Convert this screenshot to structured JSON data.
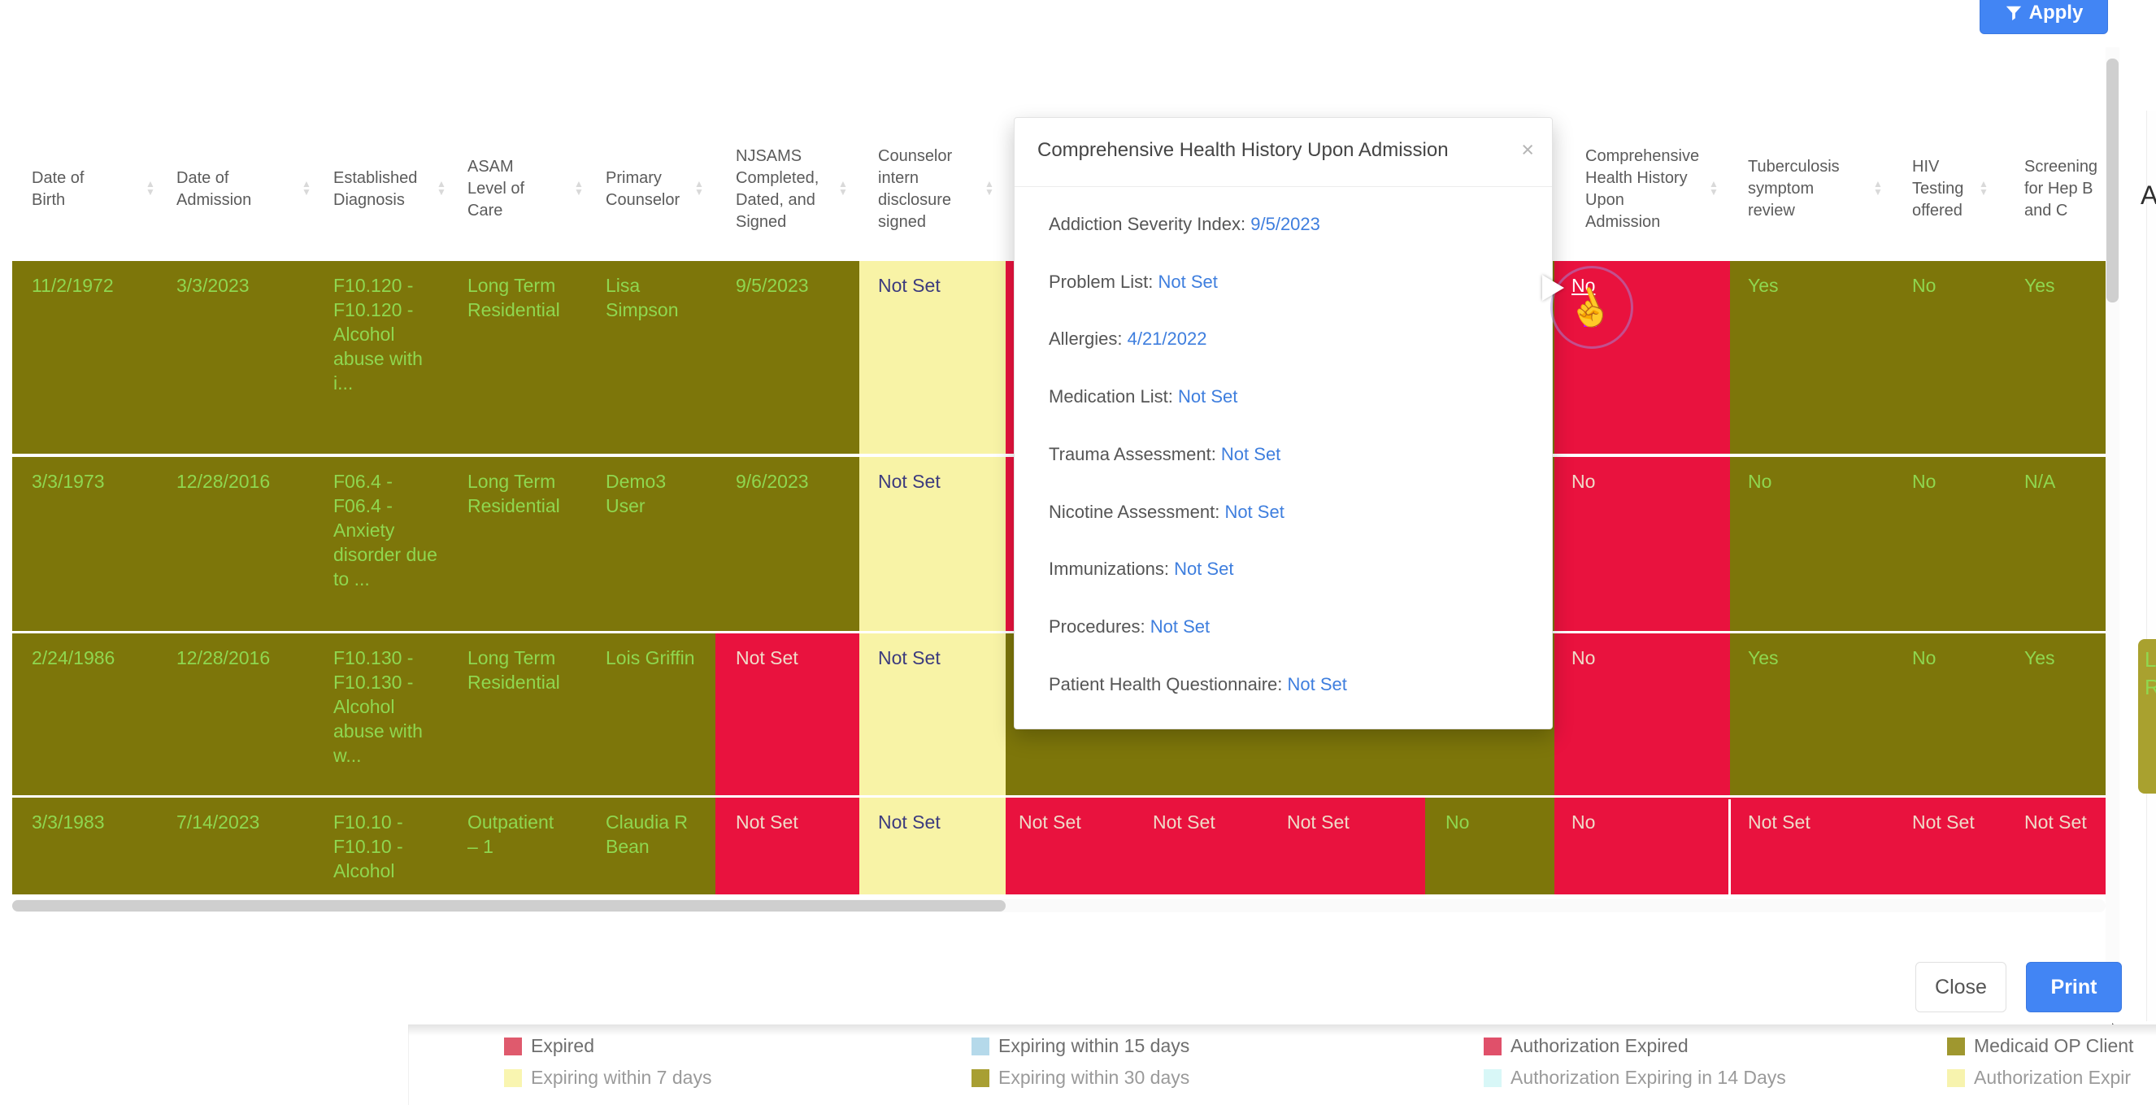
{
  "toolbar": {
    "apply_label": "Apply"
  },
  "colors": {
    "olive": "#7d760a",
    "red": "#e9123e",
    "yellow": "#f8f3a6",
    "olive_text": "#8fd74f",
    "red_text": "#efdbc8",
    "yellow_text": "#3c3b7e",
    "accent_blue": "#4285f4",
    "link_blue": "#3e7ede"
  },
  "table": {
    "columns": [
      {
        "label": "Date of\nBirth",
        "sort": true
      },
      {
        "label": "Date of\nAdmission",
        "sort": true
      },
      {
        "label": "Established\nDiagnosis",
        "sort": true
      },
      {
        "label": "ASAM\nLevel of\nCare",
        "sort": true
      },
      {
        "label": "Primary\nCounselor",
        "sort": true
      },
      {
        "label": "NJSAMS\nCompleted,\nDated, and\nSigned",
        "sort": true
      },
      {
        "label": "Counselor\nintern\ndisclosure\nsigned",
        "sort": true
      },
      {
        "label": "",
        "sort": false
      },
      {
        "label": "",
        "sort": false
      },
      {
        "label": "",
        "sort": false
      },
      {
        "label": "",
        "sort": false
      },
      {
        "label": "Comprehensive\nHealth History\nUpon\nAdmission",
        "sort": true
      },
      {
        "label": "Tuberculosis\nsymptom\nreview",
        "sort": true
      },
      {
        "label": "HIV\nTesting\noffered",
        "sort": true
      },
      {
        "label": "Screening\nfor Hep B\nand C",
        "sort": false
      }
    ],
    "rows": [
      {
        "cells": [
          {
            "t": "11/2/1972",
            "bg": "olive"
          },
          {
            "t": "3/3/2023",
            "bg": "olive"
          },
          {
            "t": "F10.120 -\nF10.120 -\nAlcohol\nabuse with\ni...",
            "bg": "olive"
          },
          {
            "t": "Long Term\nResidential",
            "bg": "olive"
          },
          {
            "t": "Lisa\nSimpson",
            "bg": "olive"
          },
          {
            "t": "9/5/2023",
            "bg": "olive"
          },
          {
            "t": "Not Set",
            "bg": "yellow"
          },
          {
            "t": "",
            "bg": "red"
          },
          {
            "t": "",
            "bg": "olive"
          },
          {
            "t": "",
            "bg": "olive"
          },
          {
            "t": "",
            "bg": "olive"
          },
          {
            "t": "No",
            "bg": "red",
            "hover": true
          },
          {
            "t": "Yes",
            "bg": "olive"
          },
          {
            "t": "No",
            "bg": "olive"
          },
          {
            "t": "Yes",
            "bg": "olive"
          }
        ]
      },
      {
        "cells": [
          {
            "t": "3/3/1973",
            "bg": "olive"
          },
          {
            "t": "12/28/2016",
            "bg": "olive"
          },
          {
            "t": "F06.4 -\nF06.4 -\nAnxiety\ndisorder due\nto ...",
            "bg": "olive"
          },
          {
            "t": "Long Term\nResidential",
            "bg": "olive"
          },
          {
            "t": "Demo3\nUser",
            "bg": "olive"
          },
          {
            "t": "9/6/2023",
            "bg": "olive"
          },
          {
            "t": "Not Set",
            "bg": "yellow"
          },
          {
            "t": "",
            "bg": "red"
          },
          {
            "t": "",
            "bg": "olive"
          },
          {
            "t": "",
            "bg": "olive"
          },
          {
            "t": "",
            "bg": "olive"
          },
          {
            "t": "No",
            "bg": "red"
          },
          {
            "t": "No",
            "bg": "olive"
          },
          {
            "t": "No",
            "bg": "olive"
          },
          {
            "t": "N/A",
            "bg": "olive"
          }
        ]
      },
      {
        "cells": [
          {
            "t": "2/24/1986",
            "bg": "olive"
          },
          {
            "t": "12/28/2016",
            "bg": "olive"
          },
          {
            "t": "F10.130 -\nF10.130 -\nAlcohol\nabuse with\nw...",
            "bg": "olive"
          },
          {
            "t": "Long Term\nResidential",
            "bg": "olive"
          },
          {
            "t": "Lois Griffin",
            "bg": "olive"
          },
          {
            "t": "Not Set",
            "bg": "red"
          },
          {
            "t": "Not Set",
            "bg": "yellow"
          },
          {
            "t": "",
            "bg": "olive"
          },
          {
            "t": "",
            "bg": "olive"
          },
          {
            "t": "",
            "bg": "olive"
          },
          {
            "t": "",
            "bg": "olive"
          },
          {
            "t": "No",
            "bg": "red"
          },
          {
            "t": "Yes",
            "bg": "olive"
          },
          {
            "t": "No",
            "bg": "olive"
          },
          {
            "t": "Yes",
            "bg": "olive"
          }
        ]
      },
      {
        "cells": [
          {
            "t": "3/3/1983",
            "bg": "olive"
          },
          {
            "t": "7/14/2023",
            "bg": "olive"
          },
          {
            "t": "F10.10 -\nF10.10 -\nAlcohol",
            "bg": "olive"
          },
          {
            "t": "Outpatient\n– 1",
            "bg": "olive"
          },
          {
            "t": "Claudia R\nBean",
            "bg": "olive"
          },
          {
            "t": "Not Set",
            "bg": "red"
          },
          {
            "t": "Not Set",
            "bg": "yellow"
          },
          {
            "t": "Not Set",
            "bg": "red"
          },
          {
            "t": "Not Set",
            "bg": "red"
          },
          {
            "t": "Not Set",
            "bg": "red"
          },
          {
            "t": "No",
            "bg": "olive"
          },
          {
            "t": "No",
            "bg": "red"
          },
          {
            "t": "Not Set",
            "bg": "red"
          },
          {
            "t": "Not Set",
            "bg": "red"
          },
          {
            "t": "Not Set",
            "bg": "red"
          }
        ]
      }
    ]
  },
  "popup": {
    "title": "Comprehensive Health History Upon Admission",
    "close_icon": "×",
    "items": [
      {
        "label": "Addiction Severity Index",
        "value": "9/5/2023"
      },
      {
        "label": "Problem List",
        "value": "Not Set"
      },
      {
        "label": "Allergies",
        "value": "4/21/2022"
      },
      {
        "label": "Medication List",
        "value": "Not Set"
      },
      {
        "label": "Trauma Assessment",
        "value": "Not Set"
      },
      {
        "label": "Nicotine Assessment",
        "value": "Not Set"
      },
      {
        "label": "Immunizations",
        "value": "Not Set"
      },
      {
        "label": "Procedures",
        "value": "Not Set"
      },
      {
        "label": "Patient Health Questionnaire",
        "value": "Not Set"
      }
    ]
  },
  "buttons": {
    "close": "Close",
    "print": "Print"
  },
  "legend": {
    "items": [
      {
        "swatch": "#df5a6d",
        "label": "Expired"
      },
      {
        "swatch": "#f9f5b0",
        "label": "Expiring within 7 days"
      },
      {
        "swatch": "#b5d9ea",
        "label": "Expiring within 15 days"
      },
      {
        "swatch": "#a89f33",
        "label": "Expiring within 30 days"
      },
      {
        "swatch": "#e0506a",
        "label": "Authorization Expired"
      },
      {
        "swatch": "#d8f7f7",
        "label": "Authorization Expiring in 14 Days"
      },
      {
        "swatch": "#9f972f",
        "label": "Medicaid OP Client"
      },
      {
        "swatch": "#f7f3ae",
        "label": "Authorization Expir"
      }
    ]
  },
  "edge": {
    "top_right_fragment": "A",
    "side_box_fragment": "Lo\nR"
  }
}
